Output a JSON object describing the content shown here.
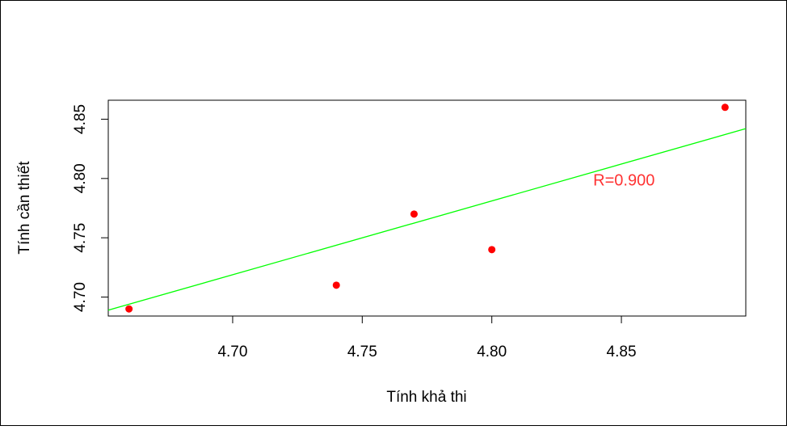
{
  "chart_data": {
    "type": "scatter",
    "title": "",
    "xlabel": "Tính khả thi",
    "ylabel": "Tính cần thiết",
    "xlim": [
      4.652,
      4.898
    ],
    "ylim": [
      4.684,
      4.866
    ],
    "xticks": [
      "4.70",
      "4.75",
      "4.80",
      "4.85"
    ],
    "xtick_values": [
      4.7,
      4.75,
      4.8,
      4.85
    ],
    "yticks": [
      "4.70",
      "4.75",
      "4.80",
      "4.85"
    ],
    "ytick_values": [
      4.7,
      4.75,
      4.8,
      4.85
    ],
    "points": [
      {
        "x": 4.66,
        "y": 4.69
      },
      {
        "x": 4.74,
        "y": 4.71
      },
      {
        "x": 4.77,
        "y": 4.77
      },
      {
        "x": 4.8,
        "y": 4.74
      },
      {
        "x": 4.89,
        "y": 4.86
      }
    ],
    "trendline": {
      "intercept": 1.7945,
      "slope": 0.6222
    },
    "annotation": {
      "text": "R=0.900",
      "x": 4.851,
      "y": 4.799
    },
    "grid": false,
    "colors": {
      "points": "#ff0000",
      "trendline": "#00ff00",
      "annotation": "#ff3333",
      "axis": "#000000"
    }
  }
}
